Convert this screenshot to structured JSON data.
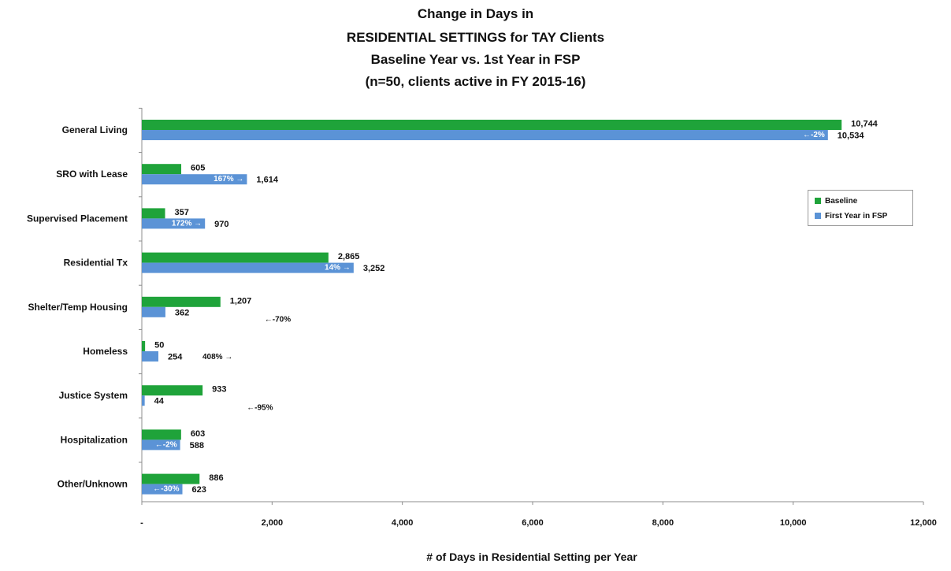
{
  "chart_data": {
    "type": "bar",
    "orientation": "horizontal",
    "title_lines": [
      "Change in Days in",
      "RESIDENTIAL SETTINGS for TAY Clients",
      "Baseline Year vs. 1st Year in FSP",
      "(n=50, clients active in FY 2015-16)"
    ],
    "xlabel": "# of Days in Residential Setting per Year",
    "ylabel": "",
    "xlim": [
      0,
      12000
    ],
    "x_ticks": [
      {
        "value": 0,
        "label": "-"
      },
      {
        "value": 2000,
        "label": "2,000"
      },
      {
        "value": 4000,
        "label": "4,000"
      },
      {
        "value": 6000,
        "label": "6,000"
      },
      {
        "value": 8000,
        "label": "8,000"
      },
      {
        "value": 10000,
        "label": "10,000"
      },
      {
        "value": 12000,
        "label": "12,000"
      }
    ],
    "grid": false,
    "legend_position": "right",
    "categories": [
      "General Living",
      "SRO with Lease",
      "Supervised Placement",
      "Residential Tx",
      "Shelter/Temp Housing",
      "Homeless",
      "Justice System",
      "Hospitalization",
      "Other/Unknown"
    ],
    "series": [
      {
        "name": "Baseline",
        "color": "#1fa33a",
        "values": [
          10744,
          605,
          357,
          2865,
          1207,
          50,
          933,
          603,
          886
        ],
        "labels": [
          "10,744",
          "605",
          "357",
          "2,865",
          "1,207",
          "50",
          "933",
          "603",
          "886"
        ]
      },
      {
        "name": "First Year in FSP",
        "color": "#5b93d6",
        "values": [
          10534,
          1614,
          970,
          3252,
          362,
          254,
          44,
          588,
          623
        ],
        "labels": [
          "10,534",
          "1,614",
          "970",
          "3,252",
          "362",
          "254",
          "44",
          "588",
          "623"
        ]
      }
    ],
    "changes": [
      {
        "text": "←-2%",
        "inside": true
      },
      {
        "text": "167% →",
        "inside": true
      },
      {
        "text": "172% →",
        "inside": true
      },
      {
        "text": "14% →",
        "inside": true
      },
      {
        "text": "←-70%",
        "inside": false
      },
      {
        "text": "408% →",
        "inside": false
      },
      {
        "text": "←-95%",
        "inside": false
      },
      {
        "text": "←-2%",
        "inside": true
      },
      {
        "text": "←-30%",
        "inside": true
      }
    ]
  }
}
